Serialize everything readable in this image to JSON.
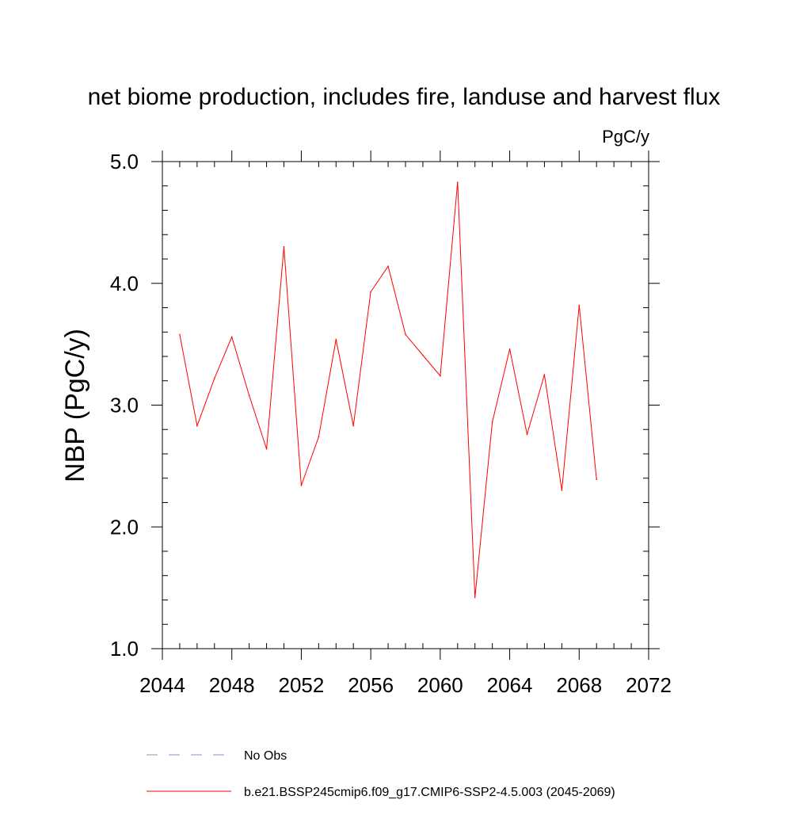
{
  "chart_data": {
    "type": "line",
    "title": "net biome production, includes fire, landuse and harvest flux",
    "units": "PgC/y",
    "ylabel": "NBP  (PgC/y)",
    "xlabel": "",
    "xlim": [
      2044,
      2072
    ],
    "ylim": [
      1.0,
      5.0
    ],
    "x_ticks": [
      2044,
      2048,
      2052,
      2056,
      2060,
      2064,
      2068,
      2072
    ],
    "x_tick_labels": [
      "2044",
      "2048",
      "2052",
      "2056",
      "2060",
      "2064",
      "2068",
      "2072"
    ],
    "y_ticks": [
      1.0,
      2.0,
      3.0,
      4.0,
      5.0
    ],
    "y_tick_labels": [
      "1.0",
      "2.0",
      "3.0",
      "4.0",
      "5.0"
    ],
    "series": [
      {
        "name": "b.e21.BSSP245cmip6.f09_g17.CMIP6-SSP2-4.5.003 (2045-2069)",
        "color": "#ff0000",
        "style": "solid",
        "x": [
          2045,
          2046,
          2047,
          2048,
          2049,
          2050,
          2051,
          2052,
          2053,
          2054,
          2055,
          2056,
          2057,
          2058,
          2059,
          2060,
          2061,
          2062,
          2063,
          2064,
          2065,
          2066,
          2067,
          2068,
          2069
        ],
        "values": [
          3.58,
          2.83,
          3.22,
          3.56,
          3.08,
          2.64,
          4.3,
          2.34,
          2.74,
          3.54,
          2.83,
          3.93,
          4.14,
          3.58,
          3.41,
          3.24,
          4.83,
          1.42,
          2.86,
          3.46,
          2.76,
          3.25,
          2.3,
          3.82,
          2.39
        ]
      }
    ],
    "legend": [
      {
        "label": "No Obs",
        "color": "#8c8cc8",
        "style": "dashed"
      },
      {
        "label": "b.e21.BSSP245cmip6.f09_g17.CMIP6-SSP2-4.5.003 (2045-2069)",
        "color": "#ff0000",
        "style": "solid"
      }
    ],
    "legend_position": "bottom"
  }
}
